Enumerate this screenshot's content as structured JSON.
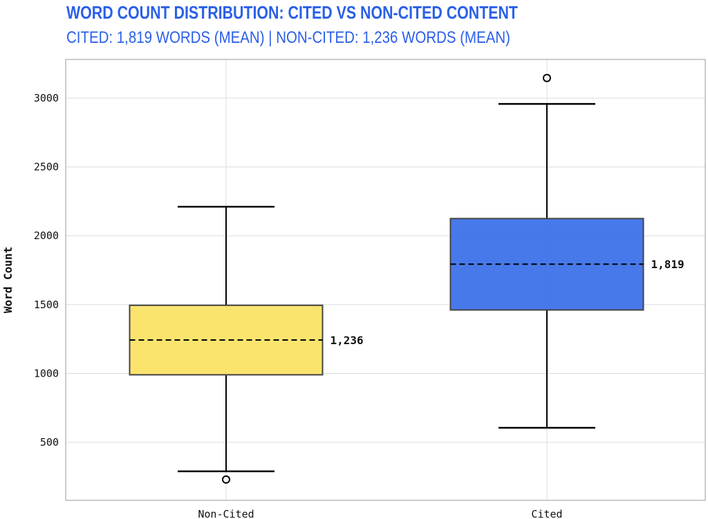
{
  "chart_data": {
    "type": "box",
    "title": "WORD COUNT DISTRIBUTION: CITED VS NON-CITED CONTENT",
    "subtitle": "CITED: 1,819 WORDS (MEAN) | NON-CITED: 1,236 WORDS (MEAN)",
    "xlabel": "",
    "ylabel": "Word Count",
    "ylim": [
      78,
      3281
    ],
    "yticks": [
      500,
      1000,
      1500,
      2000,
      2500,
      3000
    ],
    "grid": true,
    "categories": [
      "Non-Cited",
      "Cited"
    ],
    "boxes": [
      {
        "category": "Non-Cited",
        "whisker_low": 289,
        "q1": 990,
        "median": 1243,
        "q3": 1495,
        "whisker_high": 2211,
        "outliers": [
          229
        ],
        "mean_label": "1,236",
        "color": "#f9e05a"
      },
      {
        "category": "Cited",
        "whisker_low": 605,
        "q1": 1461,
        "median": 1794,
        "q3": 2125,
        "whisker_high": 2958,
        "outliers": [
          3146
        ],
        "mean_label": "1,819",
        "color": "#2f66e8"
      }
    ]
  }
}
